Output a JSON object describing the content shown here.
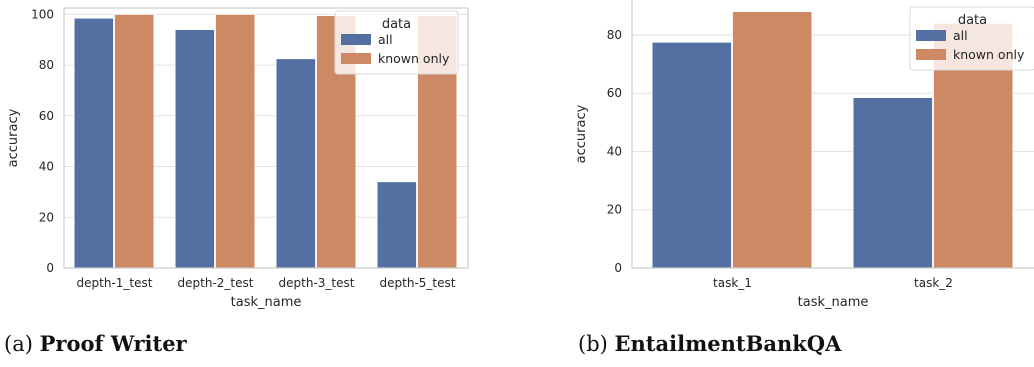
{
  "figure": {
    "captions": [
      {
        "label": "(a)",
        "title": "Proof Writer"
      },
      {
        "label": "(b)",
        "title": "EntailmentBankQA"
      }
    ]
  },
  "colors": {
    "all": "#5470a3",
    "known_only": "#cc8963",
    "grid": "#e2e2e2",
    "axis": "#cccccc",
    "legend_bg": "#ffffff",
    "text": "#262626"
  },
  "chart_data": [
    {
      "type": "bar",
      "title": "",
      "xlabel": "task_name",
      "ylabel": "accuracy",
      "categories": [
        "depth-1_test",
        "depth-2_test",
        "depth-3_test",
        "depth-5_test"
      ],
      "series": [
        {
          "name": "all",
          "values": [
            98.5,
            94,
            82.5,
            34
          ]
        },
        {
          "name": "known only",
          "values": [
            100,
            100,
            99.5,
            99.5
          ]
        }
      ],
      "ylim": [
        0,
        102.5
      ],
      "yticks": [
        0,
        20,
        40,
        60,
        80,
        100
      ],
      "grid": true,
      "legend": {
        "title": "data",
        "placement": "top-right"
      }
    },
    {
      "type": "bar",
      "title": "",
      "xlabel": "task_name",
      "ylabel": "accuracy",
      "categories": [
        "task_1",
        "task_2"
      ],
      "series": [
        {
          "name": "all",
          "values": [
            77.5,
            58.5
          ]
        },
        {
          "name": "known only",
          "values": [
            88,
            84
          ]
        }
      ],
      "ylim": [
        0,
        92
      ],
      "yticks": [
        0,
        20,
        40,
        60,
        80
      ],
      "grid": true,
      "legend": {
        "title": "data",
        "placement": "top-right"
      }
    }
  ]
}
